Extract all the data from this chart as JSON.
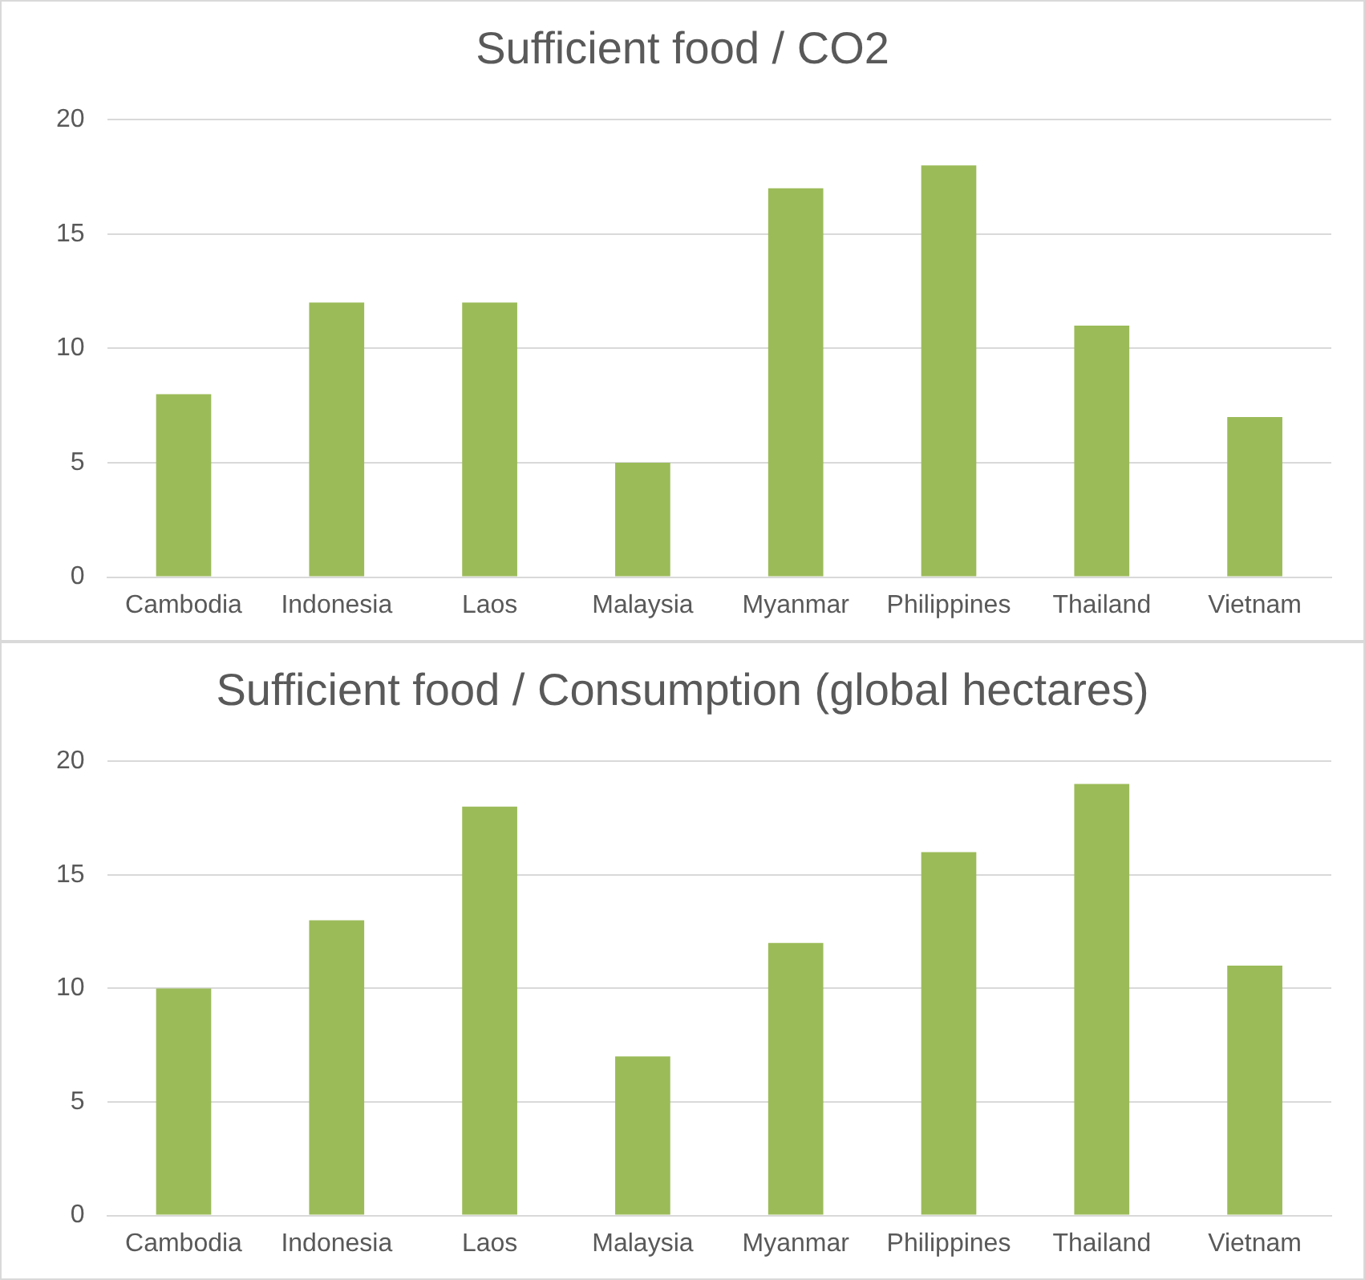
{
  "chart_data": [
    {
      "type": "bar",
      "title": "Sufficient food / CO2",
      "categories": [
        "Cambodia",
        "Indonesia",
        "Laos",
        "Malaysia",
        "Myanmar",
        "Philippines",
        "Thailand",
        "Vietnam"
      ],
      "values": [
        8,
        12,
        12,
        5,
        17,
        18,
        11,
        7
      ],
      "color": "#9bbb59",
      "ylim": [
        0,
        20
      ],
      "yticks": [
        0,
        5,
        10,
        15,
        20
      ],
      "grid": "y"
    },
    {
      "type": "bar",
      "title": "Sufficient food / Consumption (global hectares)",
      "categories": [
        "Cambodia",
        "Indonesia",
        "Laos",
        "Malaysia",
        "Myanmar",
        "Philippines",
        "Thailand",
        "Vietnam"
      ],
      "values": [
        10,
        13,
        18,
        7,
        12,
        16,
        19,
        11
      ],
      "color": "#9bbb59",
      "ylim": [
        0,
        20
      ],
      "yticks": [
        0,
        5,
        10,
        15,
        20
      ],
      "grid": "y"
    }
  ]
}
